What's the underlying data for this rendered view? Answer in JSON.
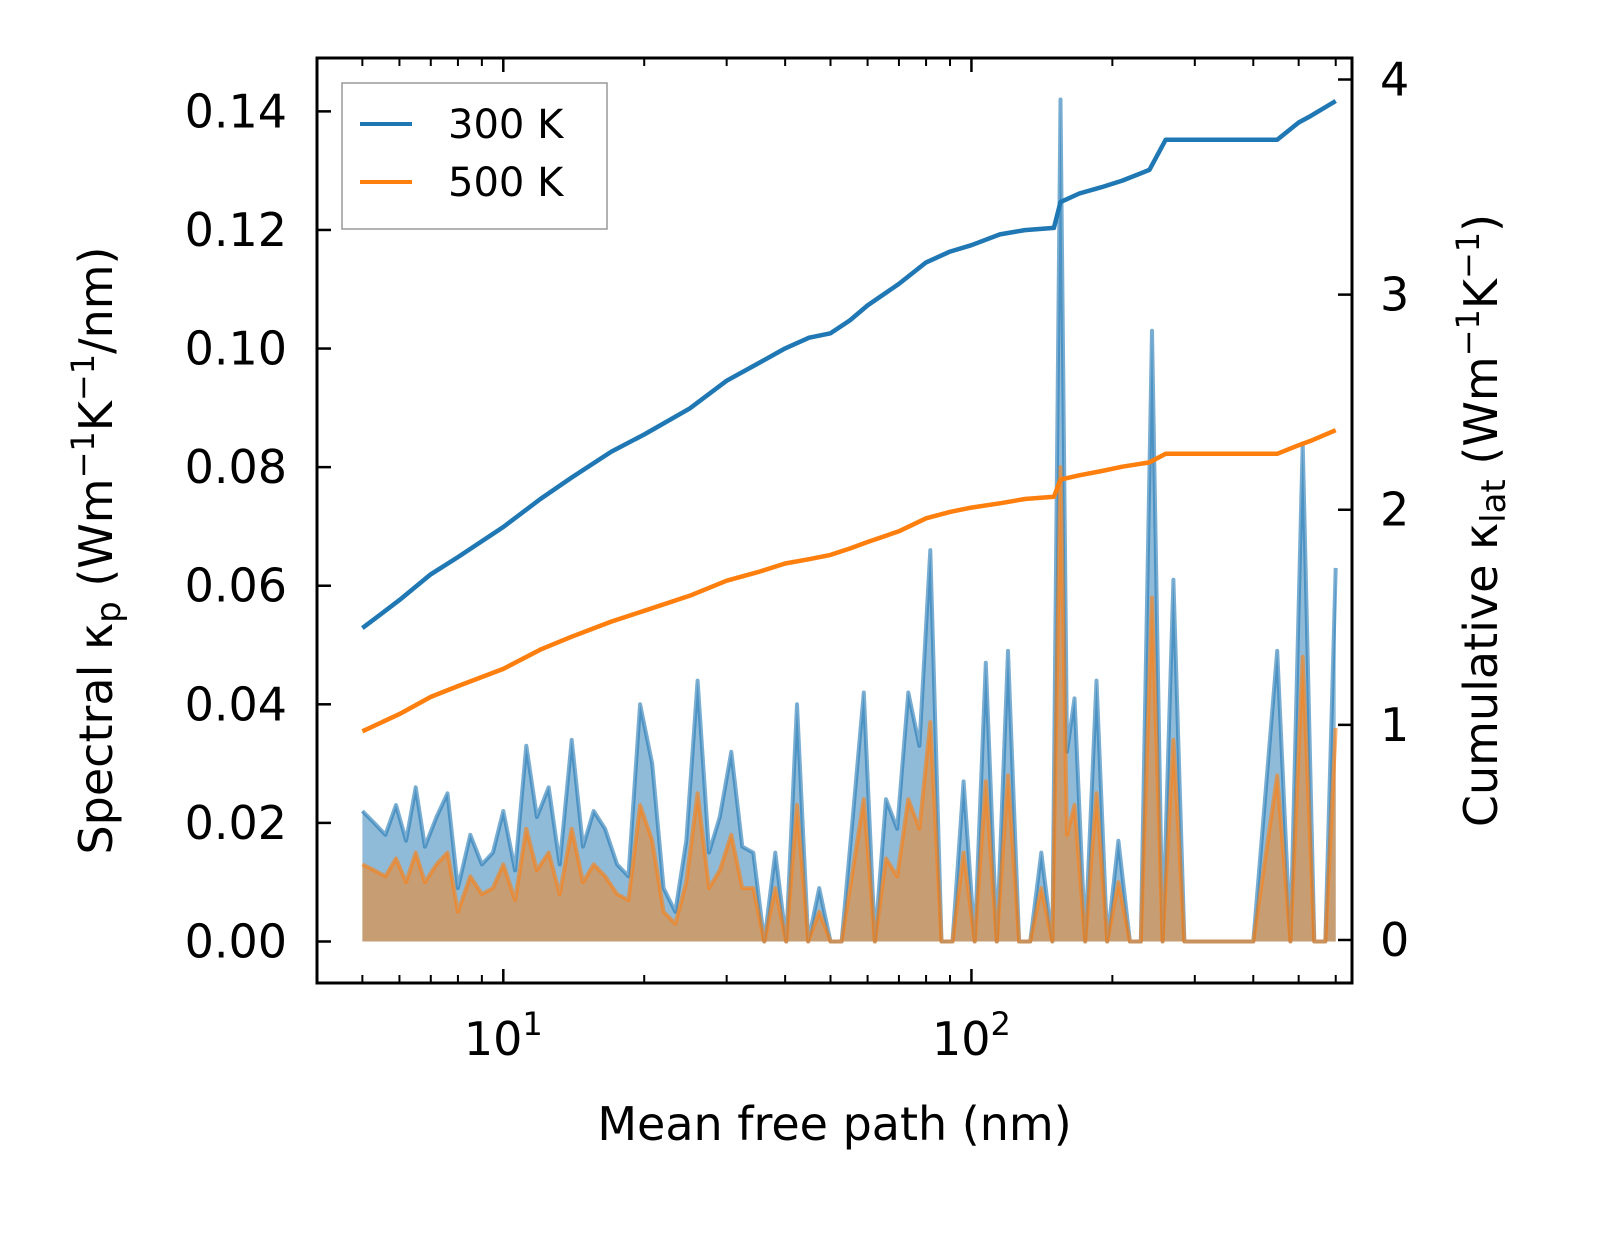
{
  "chart_data": {
    "type": "line",
    "x_scale": "log",
    "xlabel": "Mean free path (nm)",
    "ylabel_left": {
      "base": "Spectral κ",
      "sub": "p",
      "units_open": " (Wm",
      "exp1": "−1",
      "mid": "K",
      "exp2": "−1",
      "units_close": "/nm)"
    },
    "ylabel_right": {
      "base": "Cumulative κ",
      "sub": "lat",
      "units_open": " (Wm",
      "exp1": "−1",
      "mid": "K",
      "exp2": "−1",
      "units_close": ")"
    },
    "xlim": [
      4.0,
      650
    ],
    "ylim_left": [
      -0.007,
      0.149
    ],
    "ylim_right": [
      -0.2,
      4.1
    ],
    "x_ticks": [
      {
        "value": 10,
        "base": "10",
        "exp": "1"
      },
      {
        "value": 100,
        "base": "10",
        "exp": "2"
      }
    ],
    "y_ticks_left": [
      {
        "value": 0.0,
        "label": "0.00"
      },
      {
        "value": 0.02,
        "label": "0.02"
      },
      {
        "value": 0.04,
        "label": "0.04"
      },
      {
        "value": 0.06,
        "label": "0.06"
      },
      {
        "value": 0.08,
        "label": "0.08"
      },
      {
        "value": 0.1,
        "label": "0.10"
      },
      {
        "value": 0.12,
        "label": "0.12"
      },
      {
        "value": 0.14,
        "label": "0.14"
      }
    ],
    "y_ticks_right": [
      {
        "value": 0,
        "label": "0"
      },
      {
        "value": 1,
        "label": "1"
      },
      {
        "value": 2,
        "label": "2"
      },
      {
        "value": 3,
        "label": "3"
      },
      {
        "value": 4,
        "label": "4"
      }
    ],
    "legend": {
      "position": "top-left",
      "entries": [
        "300 K",
        "500 K"
      ]
    },
    "colors": {
      "300 K": "#1f77b4",
      "500 K": "#ff7f0e"
    },
    "series": [
      {
        "name": "300 K",
        "kind": "cumulative",
        "axis": "right",
        "x": [
          5.0,
          6.0,
          7.0,
          8.0,
          10.0,
          12.0,
          14.0,
          17.0,
          20.0,
          25.0,
          30.0,
          35.0,
          40.0,
          45.0,
          50.0,
          55.0,
          60.0,
          70.0,
          80.0,
          90.0,
          100.0,
          115.0,
          130.0,
          150.0,
          155.0,
          170.0,
          190.0,
          210.0,
          240.0,
          260.0,
          300.0,
          400.0,
          450.0,
          500.0,
          530.0,
          600.0
        ],
        "values": [
          1.45,
          1.58,
          1.7,
          1.78,
          1.92,
          2.05,
          2.15,
          2.27,
          2.35,
          2.47,
          2.6,
          2.68,
          2.75,
          2.8,
          2.82,
          2.88,
          2.95,
          3.05,
          3.15,
          3.2,
          3.23,
          3.28,
          3.3,
          3.31,
          3.43,
          3.47,
          3.5,
          3.53,
          3.58,
          3.72,
          3.72,
          3.72,
          3.72,
          3.8,
          3.83,
          3.9
        ]
      },
      {
        "name": "500 K",
        "kind": "cumulative",
        "axis": "right",
        "x": [
          5.0,
          6.0,
          7.0,
          8.0,
          10.0,
          12.0,
          14.0,
          17.0,
          20.0,
          25.0,
          30.0,
          35.0,
          40.0,
          45.0,
          50.0,
          55.0,
          60.0,
          70.0,
          80.0,
          90.0,
          100.0,
          115.0,
          130.0,
          150.0,
          155.0,
          170.0,
          190.0,
          210.0,
          240.0,
          260.0,
          300.0,
          400.0,
          450.0,
          500.0,
          530.0,
          600.0
        ],
        "values": [
          0.97,
          1.05,
          1.13,
          1.18,
          1.26,
          1.35,
          1.41,
          1.48,
          1.53,
          1.6,
          1.67,
          1.71,
          1.75,
          1.77,
          1.79,
          1.82,
          1.85,
          1.9,
          1.96,
          1.99,
          2.01,
          2.03,
          2.05,
          2.06,
          2.14,
          2.16,
          2.18,
          2.2,
          2.22,
          2.26,
          2.26,
          2.26,
          2.26,
          2.3,
          2.32,
          2.37
        ]
      },
      {
        "name": "300 K",
        "kind": "spectral",
        "axis": "left",
        "x": [
          5.0,
          5.3,
          5.6,
          5.9,
          6.2,
          6.5,
          6.8,
          7.2,
          7.6,
          8.0,
          8.5,
          9.0,
          9.5,
          10.0,
          10.6,
          11.2,
          11.8,
          12.5,
          13.2,
          14.0,
          14.8,
          15.6,
          16.5,
          17.5,
          18.5,
          19.6,
          20.8,
          22.0,
          23.3,
          24.6,
          26.0,
          27.5,
          29.0,
          30.7,
          32.4,
          34.2,
          36.1,
          38.1,
          40.2,
          42.4,
          44.8,
          47.3,
          50.0,
          52.8,
          55.8,
          58.9,
          62.2,
          65.7,
          69.4,
          73.3,
          77.4,
          81.7,
          86.3,
          91.1,
          96.2,
          101.6,
          107.3,
          113.3,
          119.7,
          126.4,
          133.5,
          141.0,
          148.9,
          155.0,
          160.0,
          166.0,
          175.0,
          185.0,
          195.0,
          206.0,
          218.0,
          230.0,
          243.0,
          256.0,
          270.0,
          285.0,
          300.0,
          350.0,
          400.0,
          450.0,
          480.0,
          510.0,
          540.0,
          570.0,
          600.0
        ],
        "values": [
          0.022,
          0.02,
          0.018,
          0.023,
          0.017,
          0.026,
          0.016,
          0.021,
          0.025,
          0.009,
          0.018,
          0.013,
          0.015,
          0.022,
          0.012,
          0.033,
          0.021,
          0.026,
          0.013,
          0.034,
          0.016,
          0.022,
          0.019,
          0.013,
          0.011,
          0.04,
          0.03,
          0.009,
          0.005,
          0.017,
          0.044,
          0.015,
          0.021,
          0.032,
          0.016,
          0.015,
          0.0,
          0.015,
          0.0,
          0.04,
          0.0,
          0.009,
          0.0,
          0.0,
          0.021,
          0.042,
          0.0,
          0.024,
          0.019,
          0.042,
          0.033,
          0.066,
          0.0,
          0.0,
          0.027,
          0.0,
          0.047,
          0.0,
          0.049,
          0.0,
          0.0,
          0.015,
          0.0,
          0.142,
          0.032,
          0.041,
          0.0,
          0.044,
          0.0,
          0.017,
          0.0,
          0.0,
          0.103,
          0.0,
          0.061,
          0.0,
          0.0,
          0.0,
          0.0,
          0.049,
          0.0,
          0.084,
          0.0,
          0.0,
          0.063
        ]
      },
      {
        "name": "500 K",
        "kind": "spectral",
        "axis": "left",
        "x": [
          5.0,
          5.3,
          5.6,
          5.9,
          6.2,
          6.5,
          6.8,
          7.2,
          7.6,
          8.0,
          8.5,
          9.0,
          9.5,
          10.0,
          10.6,
          11.2,
          11.8,
          12.5,
          13.2,
          14.0,
          14.8,
          15.6,
          16.5,
          17.5,
          18.5,
          19.6,
          20.8,
          22.0,
          23.3,
          24.6,
          26.0,
          27.5,
          29.0,
          30.7,
          32.4,
          34.2,
          36.1,
          38.1,
          40.2,
          42.4,
          44.8,
          47.3,
          50.0,
          52.8,
          55.8,
          58.9,
          62.2,
          65.7,
          69.4,
          73.3,
          77.4,
          81.7,
          86.3,
          91.1,
          96.2,
          101.6,
          107.3,
          113.3,
          119.7,
          126.4,
          133.5,
          141.0,
          148.9,
          155.0,
          160.0,
          166.0,
          175.0,
          185.0,
          195.0,
          206.0,
          218.0,
          230.0,
          243.0,
          256.0,
          270.0,
          285.0,
          300.0,
          350.0,
          400.0,
          450.0,
          480.0,
          510.0,
          540.0,
          570.0,
          600.0
        ],
        "values": [
          0.013,
          0.012,
          0.011,
          0.014,
          0.01,
          0.015,
          0.01,
          0.013,
          0.015,
          0.005,
          0.011,
          0.008,
          0.009,
          0.013,
          0.007,
          0.019,
          0.012,
          0.015,
          0.008,
          0.019,
          0.01,
          0.013,
          0.011,
          0.008,
          0.007,
          0.023,
          0.017,
          0.005,
          0.003,
          0.01,
          0.025,
          0.009,
          0.012,
          0.018,
          0.009,
          0.009,
          0.0,
          0.009,
          0.0,
          0.023,
          0.0,
          0.005,
          0.0,
          0.0,
          0.012,
          0.024,
          0.0,
          0.014,
          0.011,
          0.024,
          0.019,
          0.037,
          0.0,
          0.0,
          0.015,
          0.0,
          0.027,
          0.0,
          0.028,
          0.0,
          0.0,
          0.009,
          0.0,
          0.08,
          0.018,
          0.023,
          0.0,
          0.025,
          0.0,
          0.01,
          0.0,
          0.0,
          0.058,
          0.0,
          0.034,
          0.0,
          0.0,
          0.0,
          0.0,
          0.028,
          0.0,
          0.048,
          0.0,
          0.0,
          0.036
        ]
      }
    ]
  }
}
